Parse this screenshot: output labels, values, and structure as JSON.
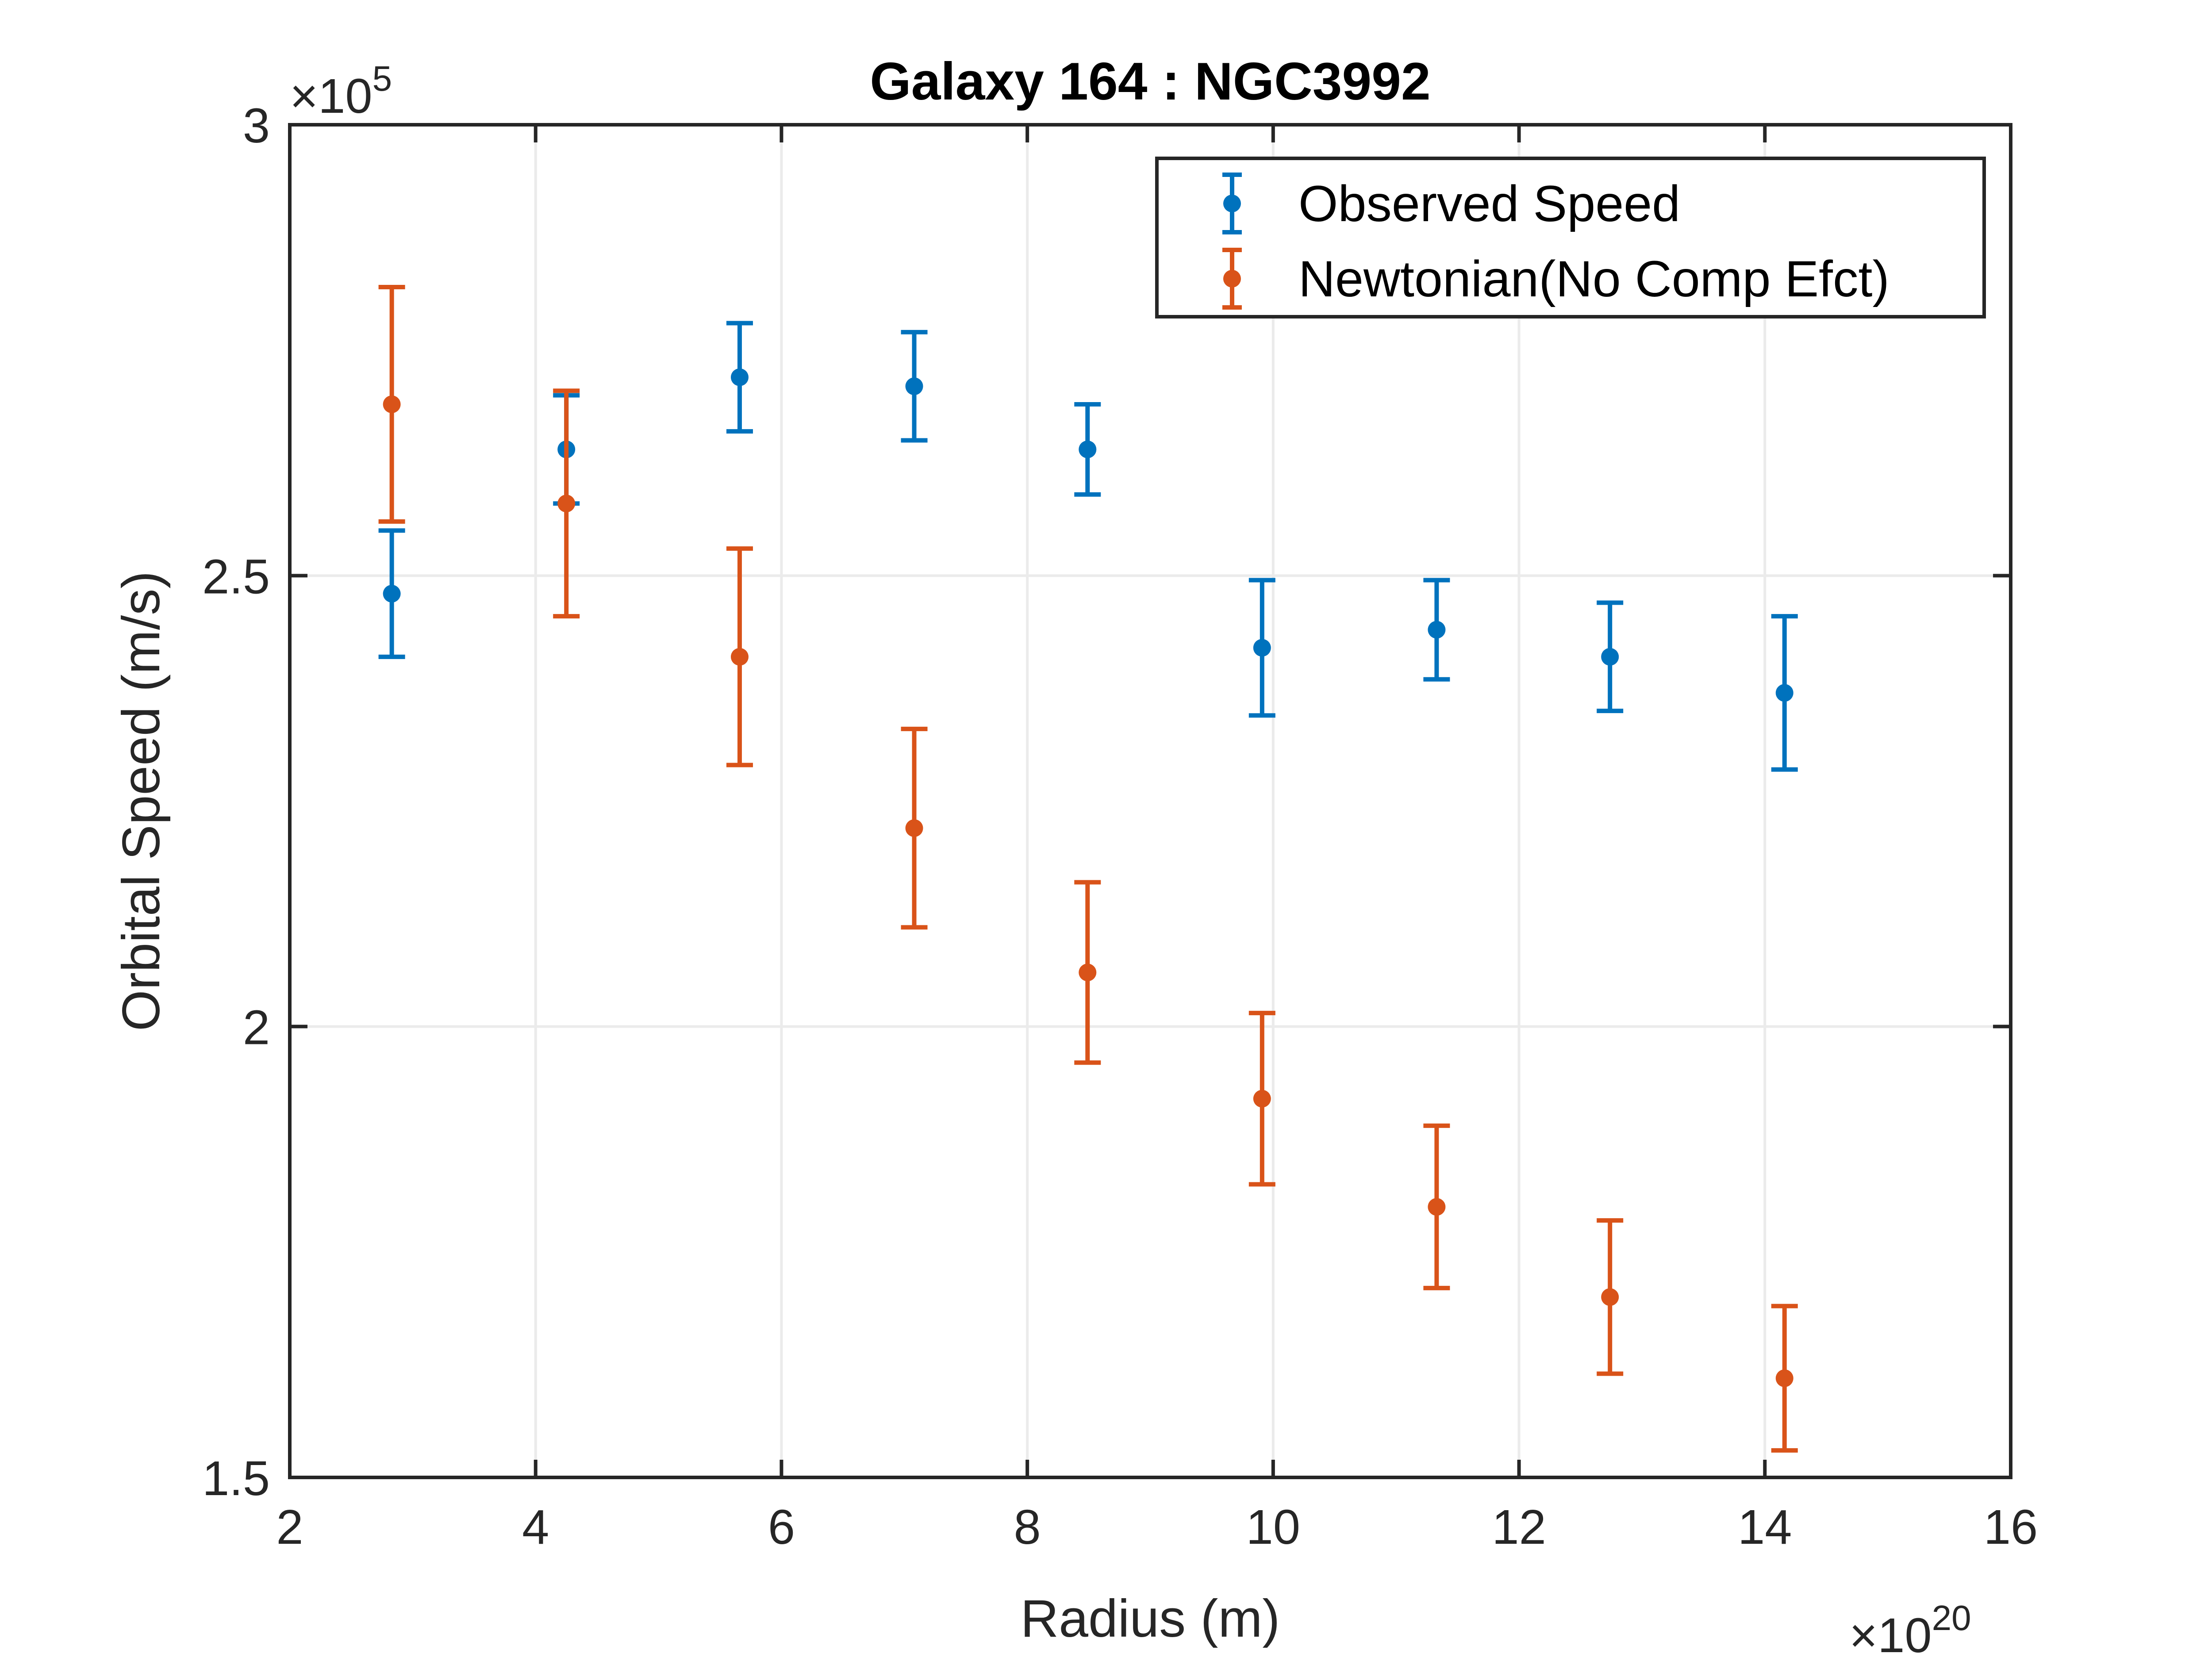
{
  "chart_data": {
    "type": "scatter",
    "title": "Galaxy 164 : NGC3992",
    "xlabel": "Radius (m)",
    "ylabel": "Orbital Speed (m/s)",
    "x_multiplier_base": "×10",
    "x_multiplier_exp": "20",
    "y_multiplier_base": "×10",
    "y_multiplier_exp": "5",
    "xlim": [
      2,
      16
    ],
    "ylim": [
      1.5,
      3.0
    ],
    "xticks": [
      2,
      4,
      6,
      8,
      10,
      12,
      14,
      16
    ],
    "xtick_labels": [
      "2",
      "4",
      "6",
      "8",
      "10",
      "12",
      "14",
      "16"
    ],
    "yticks": [
      1.5,
      2.0,
      2.5,
      3.0
    ],
    "ytick_labels": [
      "1.5",
      "2",
      "2.5",
      "3"
    ],
    "grid": true,
    "legend_position": "top-right",
    "series": [
      {
        "name": "Observed Speed",
        "color": "#0072BD",
        "x": [
          2.83,
          4.25,
          5.66,
          7.08,
          8.49,
          9.91,
          11.33,
          12.74,
          14.16
        ],
        "y": [
          2.48,
          2.64,
          2.72,
          2.71,
          2.64,
          2.42,
          2.44,
          2.41,
          2.37
        ],
        "err": [
          0.07,
          0.06,
          0.06,
          0.06,
          0.05,
          0.075,
          0.055,
          0.06,
          0.085
        ]
      },
      {
        "name": "Newtonian(No Comp Efct)",
        "color": "#D95319",
        "x": [
          2.83,
          4.25,
          5.66,
          7.08,
          8.49,
          9.91,
          11.33,
          12.74,
          14.16
        ],
        "y": [
          2.69,
          2.58,
          2.41,
          2.22,
          2.06,
          1.92,
          1.8,
          1.7,
          1.61
        ],
        "err": [
          0.13,
          0.125,
          0.12,
          0.11,
          0.1,
          0.095,
          0.09,
          0.085,
          0.08
        ]
      }
    ]
  }
}
